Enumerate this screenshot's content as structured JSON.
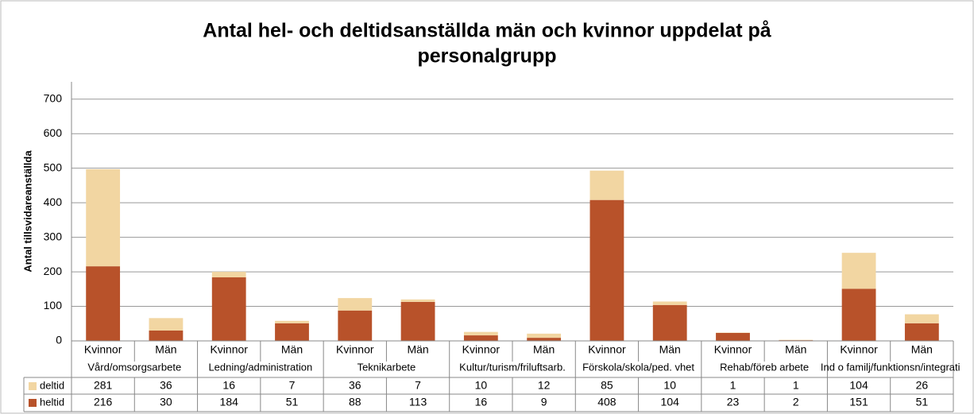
{
  "chart_data": {
    "type": "bar",
    "stacked": true,
    "title": [
      "Antal hel- och deltidsanställda män och kvinnor uppdelat på",
      "personalgrupp"
    ],
    "y_label": "Antal tillsvidareanställda",
    "categories": [
      "Kvinnor",
      "Män",
      "Kvinnor",
      "Män",
      "Kvinnor",
      "Män",
      "Kvinnor",
      "Män",
      "Kvinnor",
      "Män",
      "Kvinnor",
      "Män",
      "Kvinnor",
      "Män"
    ],
    "groups": [
      "Vård/omsorgsarbete",
      "Ledning/administration",
      "Teknikarbete",
      "Kultur/turism/friluftsarb.",
      "Förskola/skola/ped. vhet",
      "Rehab/föreb arbete",
      "Ind o familj/funktionsn/integrati"
    ],
    "series": [
      {
        "name": "deltid",
        "color": "#f2d6a2",
        "values": [
          281,
          36,
          16,
          7,
          36,
          7,
          10,
          12,
          85,
          10,
          1,
          1,
          104,
          26
        ]
      },
      {
        "name": "heltid",
        "color": "#b8522a",
        "values": [
          216,
          30,
          184,
          51,
          88,
          113,
          16,
          9,
          408,
          104,
          23,
          2,
          151,
          51
        ]
      }
    ],
    "ylim": [
      0,
      750
    ],
    "yticks": [
      0,
      100,
      200,
      300,
      400,
      500,
      600,
      700
    ],
    "grid": true
  }
}
